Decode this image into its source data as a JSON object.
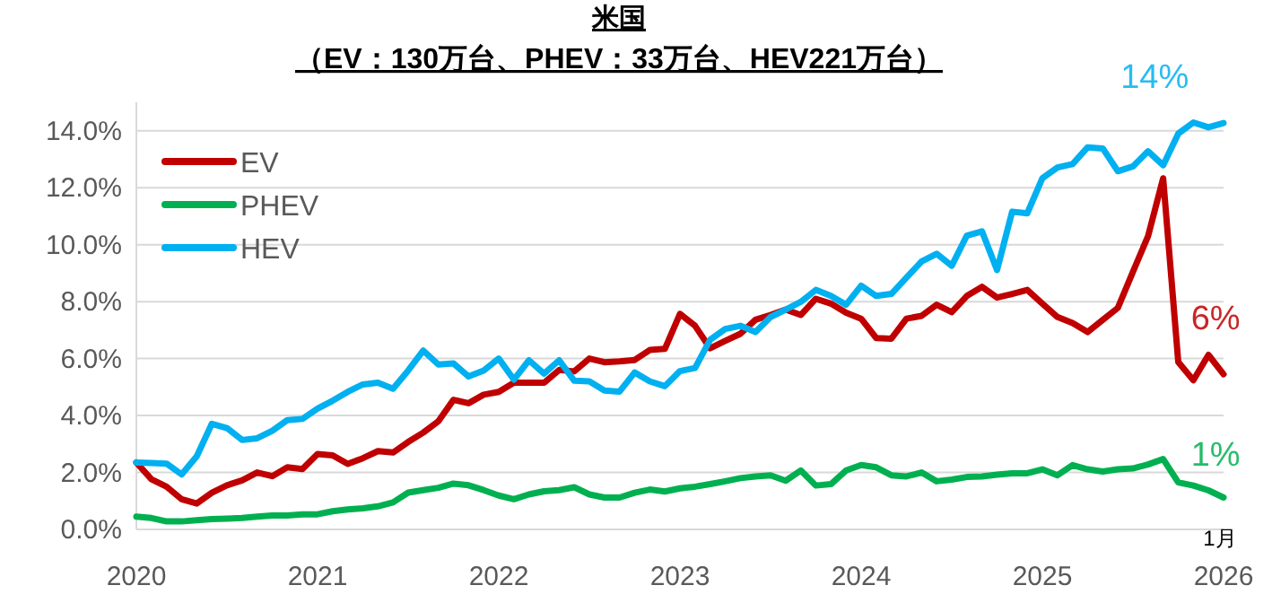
{
  "chart_data": {
    "type": "line",
    "title": "米国",
    "subtitle": "（EV：130万台、PHEV：33万台、HEV221万台）",
    "x": [
      "2020-01",
      "2020-02",
      "2020-03",
      "2020-04",
      "2020-05",
      "2020-06",
      "2020-07",
      "2020-08",
      "2020-09",
      "2020-10",
      "2020-11",
      "2020-12",
      "2021-01",
      "2021-02",
      "2021-03",
      "2021-04",
      "2021-05",
      "2021-06",
      "2021-07",
      "2021-08",
      "2021-09",
      "2021-10",
      "2021-11",
      "2021-12",
      "2022-01",
      "2022-02",
      "2022-03",
      "2022-04",
      "2022-05",
      "2022-06",
      "2022-07",
      "2022-08",
      "2022-09",
      "2022-10",
      "2022-11",
      "2022-12",
      "2023-01",
      "2023-02",
      "2023-03",
      "2023-04",
      "2023-05",
      "2023-06",
      "2023-07",
      "2023-08",
      "2023-09",
      "2023-10",
      "2023-11",
      "2023-12",
      "2024-01",
      "2024-02",
      "2024-03",
      "2024-04",
      "2024-05",
      "2024-06",
      "2024-07",
      "2024-08",
      "2024-09",
      "2024-10",
      "2024-11",
      "2024-12",
      "2025-01",
      "2025-02",
      "2025-03",
      "2025-04",
      "2025-05",
      "2025-06",
      "2025-07",
      "2025-08",
      "2025-09",
      "2025-10",
      "2025-11",
      "2025-12",
      "2026-01"
    ],
    "series": [
      {
        "name": "EV",
        "color": "#c00000",
        "values": [
          2.35,
          1.76,
          1.5,
          1.06,
          0.91,
          1.29,
          1.55,
          1.72,
          2.0,
          1.87,
          2.18,
          2.12,
          2.65,
          2.6,
          2.3,
          2.5,
          2.75,
          2.7,
          3.07,
          3.4,
          3.8,
          4.55,
          4.43,
          4.73,
          4.83,
          5.15,
          5.15,
          5.15,
          5.6,
          5.55,
          6.0,
          5.87,
          5.9,
          5.95,
          6.3,
          6.34,
          7.57,
          7.15,
          6.36,
          6.62,
          6.87,
          7.36,
          7.53,
          7.72,
          7.53,
          8.1,
          7.93,
          7.61,
          7.4,
          6.72,
          6.7,
          7.4,
          7.5,
          7.89,
          7.63,
          8.2,
          8.52,
          8.14,
          8.27,
          8.41,
          7.93,
          7.46,
          7.25,
          6.93,
          7.36,
          7.78,
          9.05,
          10.3,
          12.33,
          5.88,
          5.24,
          6.13,
          5.45
        ]
      },
      {
        "name": "PHEV",
        "color": "#00b050",
        "values": [
          0.45,
          0.4,
          0.28,
          0.28,
          0.32,
          0.36,
          0.38,
          0.4,
          0.45,
          0.49,
          0.49,
          0.53,
          0.53,
          0.64,
          0.7,
          0.74,
          0.81,
          0.95,
          1.29,
          1.38,
          1.46,
          1.61,
          1.55,
          1.38,
          1.19,
          1.06,
          1.23,
          1.34,
          1.38,
          1.48,
          1.23,
          1.12,
          1.12,
          1.29,
          1.4,
          1.33,
          1.44,
          1.5,
          1.59,
          1.69,
          1.8,
          1.86,
          1.9,
          1.71,
          2.07,
          1.54,
          1.59,
          2.07,
          2.26,
          2.18,
          1.9,
          1.86,
          2.0,
          1.69,
          1.75,
          1.84,
          1.86,
          1.92,
          1.97,
          1.97,
          2.11,
          1.9,
          2.26,
          2.11,
          2.03,
          2.11,
          2.14,
          2.28,
          2.47,
          1.65,
          1.54,
          1.37,
          1.12
        ]
      },
      {
        "name": "HEV",
        "color": "#00b0f0",
        "values": [
          2.35,
          2.33,
          2.31,
          1.93,
          2.57,
          3.71,
          3.56,
          3.14,
          3.2,
          3.46,
          3.84,
          3.88,
          4.24,
          4.52,
          4.83,
          5.09,
          5.15,
          4.94,
          5.58,
          6.28,
          5.79,
          5.83,
          5.37,
          5.58,
          6.0,
          5.26,
          5.94,
          5.47,
          5.94,
          5.22,
          5.2,
          4.88,
          4.84,
          5.51,
          5.2,
          5.03,
          5.56,
          5.67,
          6.66,
          7.04,
          7.15,
          6.93,
          7.46,
          7.72,
          7.99,
          8.41,
          8.2,
          7.89,
          8.56,
          8.2,
          8.27,
          8.84,
          9.41,
          9.68,
          9.26,
          10.32,
          10.47,
          9.11,
          11.16,
          11.1,
          12.33,
          12.71,
          12.83,
          13.42,
          13.38,
          12.58,
          12.75,
          13.28,
          12.79,
          13.9,
          14.29,
          14.12,
          14.27
        ]
      }
    ],
    "xlim": [
      "2020-01",
      "2026-01"
    ],
    "xticks": [
      "2020",
      "2021",
      "2022",
      "2023",
      "2024",
      "2025",
      "2026"
    ],
    "ylim": [
      0,
      15
    ],
    "yticks": [
      {
        "value": 0,
        "label": "0.0%"
      },
      {
        "value": 2,
        "label": "2.0%"
      },
      {
        "value": 4,
        "label": "4.0%"
      },
      {
        "value": 6,
        "label": "6.0%"
      },
      {
        "value": 8,
        "label": "8.0%"
      },
      {
        "value": 10,
        "label": "10.0%"
      },
      {
        "value": 12,
        "label": "12.0%"
      },
      {
        "value": 14,
        "label": "14.0%"
      }
    ],
    "grid": "y",
    "legend": "top left",
    "marker": "none",
    "line_style": "solid",
    "annotations": [
      {
        "text": "14%",
        "x": "2025-12",
        "y": 14.12
      },
      {
        "text": "6%",
        "x": "2025-12",
        "y": 6.13
      },
      {
        "text": "1%",
        "x": "2025-12",
        "y": 1.37
      },
      "1月"
    ]
  }
}
